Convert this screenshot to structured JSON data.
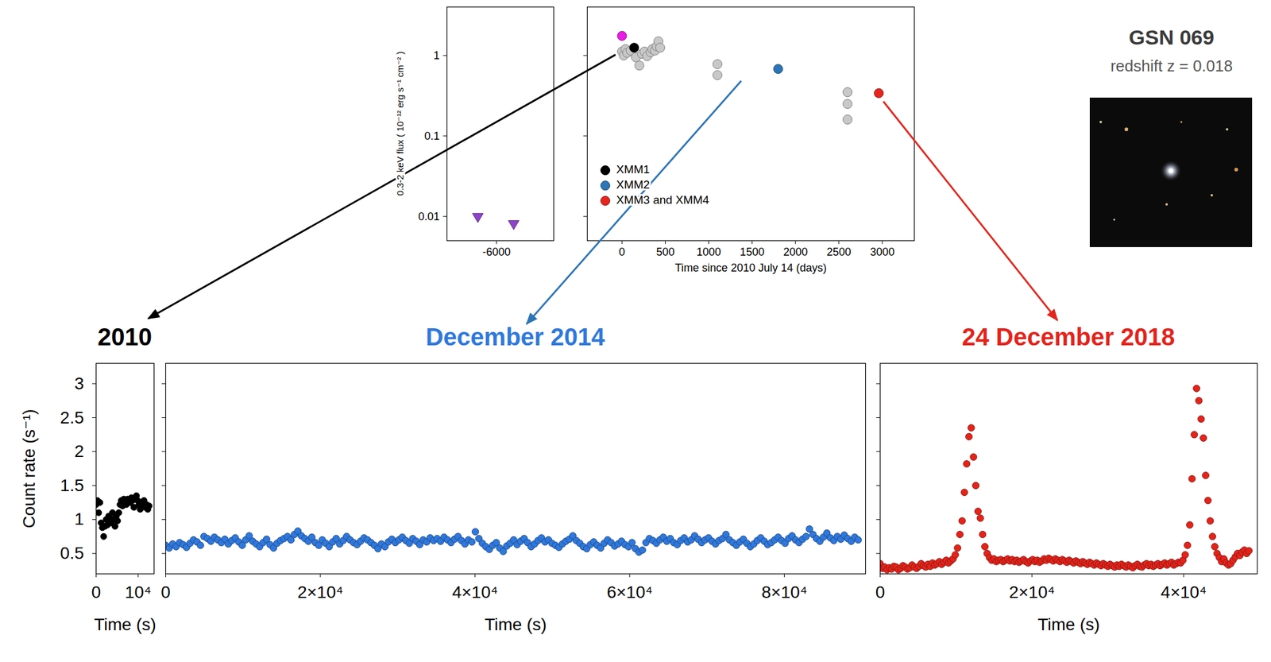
{
  "header": {
    "title": "GSN 069",
    "subtitle": "redshift z = 0.018"
  },
  "chart_data": [
    {
      "type": "scatter",
      "ylabel": "0.3-2 keV flux ( 10⁻¹² erg s⁻¹ cm⁻² )",
      "log": "y",
      "xlim": [
        -7300,
        -4500
      ],
      "xticks": [
        -6000
      ],
      "ylim": [
        0.005,
        4
      ],
      "yticks": [
        0.01,
        0.1,
        1
      ],
      "series": [
        {
          "color": "#8e44c8",
          "marker": "triangle-down",
          "x": [
            -6490,
            -5550
          ],
          "values": [
            0.0098,
            0.008
          ]
        }
      ]
    },
    {
      "type": "scatter",
      "xlabel": "Time since 2010 July 14 (days)",
      "log": "y",
      "xlim": [
        -400,
        3370
      ],
      "xticks": [
        0,
        500,
        1000,
        1500,
        2000,
        2500,
        3000
      ],
      "ylim": [
        0.005,
        4
      ],
      "yticks": [
        0.01,
        0.1,
        1
      ],
      "tick_labels": "x",
      "legend": "lower left",
      "series": [
        {
          "color": "#c8c8c8",
          "marker": "circle",
          "x": [
            0,
            20,
            40,
            60,
            100,
            160,
            200,
            230,
            260,
            290,
            330,
            350,
            380,
            400,
            420,
            440,
            1100,
            1100,
            2600,
            2600,
            2600
          ],
          "values": [
            1.12,
            1,
            1.2,
            1.08,
            1.15,
            0.95,
            0.75,
            1.05,
            1.12,
            0.98,
            1.1,
            1.2,
            1.15,
            1.3,
            1.5,
            1.25,
            0.78,
            0.57,
            0.35,
            0.25,
            0.16
          ]
        },
        {
          "color": "#e81ee0",
          "marker": "circle",
          "x": [
            0
          ],
          "values": [
            1.75
          ]
        },
        {
          "name": "XMM1",
          "color": "#000000",
          "marker": "circle",
          "x": [
            140
          ],
          "values": [
            1.25
          ]
        },
        {
          "name": "XMM2",
          "color": "#2e75b6",
          "marker": "circle",
          "x": [
            1800
          ],
          "values": [
            0.68
          ]
        },
        {
          "name": "XMM3 and XMM4",
          "color": "#e3261e",
          "marker": "circle",
          "x": [
            2960
          ],
          "values": [
            0.34
          ]
        }
      ]
    },
    {
      "type": "scatter",
      "title": "2010",
      "xlabel": "Time (s)",
      "ylabel": "Count rate (s⁻¹)",
      "xlim": [
        0,
        13800
      ],
      "xticks": [
        0,
        {
          "value": 10000,
          "label": "10⁴"
        }
      ],
      "ylim": [
        0.2,
        3.3
      ],
      "yticks": [
        0.5,
        1,
        1.5,
        2,
        2.5,
        3
      ],
      "series": [
        {
          "color": "#000000",
          "marker": "circle",
          "x": [
            0,
            300,
            600,
            900,
            1200,
            1500,
            1800,
            2100,
            2400,
            2700,
            3000,
            3300,
            3600,
            3900,
            4200,
            4500,
            4800,
            5100,
            5400,
            5700,
            6000,
            6300,
            6600,
            6900,
            7200,
            7500,
            7800,
            8100,
            8400,
            8700,
            9000,
            9300,
            9600,
            9900,
            10200,
            10500,
            10800,
            11100,
            11400,
            11700,
            12000,
            12300,
            12600
          ],
          "values": [
            1.22,
            1.28,
            1.1,
            1.25,
            0.95,
            0.88,
            0.75,
            0.9,
            1,
            0.92,
            1.05,
            1.02,
            0.95,
            1.1,
            1,
            0.9,
            1.05,
            0.98,
            1.1,
            1.22,
            1.28,
            1.2,
            1.3,
            1.25,
            1.22,
            1.3,
            1.28,
            1.25,
            1.32,
            1.28,
            1.18,
            1.3,
            1.35,
            1.28,
            1.22,
            1.15,
            1.25,
            1.2,
            1.28,
            1.18,
            1.22,
            1.15,
            1.2
          ]
        }
      ]
    },
    {
      "type": "scatter",
      "title": "December 2014",
      "xlabel": "Time (s)",
      "xlim": [
        0,
        90500
      ],
      "xticks": [
        0,
        {
          "value": 20000,
          "label": "2×10⁴"
        },
        {
          "value": 40000,
          "label": "4×10⁴"
        },
        {
          "value": 60000,
          "label": "6×10⁴"
        },
        {
          "value": 80000,
          "label": "8×10⁴"
        }
      ],
      "ylim": [
        0.2,
        3.3
      ],
      "yticks": [
        0.5,
        1,
        1.5,
        2,
        2.5,
        3
      ],
      "tick_labels": "x",
      "series": [
        {
          "color": "#2f78dc",
          "marker": "circle",
          "x": [
            0,
            450,
            900,
            1350,
            1800,
            2250,
            2700,
            3150,
            3600,
            4050,
            4500,
            4950,
            5400,
            5850,
            6300,
            6750,
            7200,
            7650,
            8100,
            8550,
            9000,
            9450,
            9900,
            10350,
            10800,
            11250,
            11700,
            12150,
            12600,
            13050,
            13500,
            13950,
            14400,
            14850,
            15300,
            15750,
            16200,
            16650,
            17100,
            17550,
            18000,
            18450,
            18900,
            19350,
            19800,
            20250,
            20700,
            21150,
            21600,
            22050,
            22500,
            22950,
            23400,
            23850,
            24300,
            24750,
            25200,
            25650,
            26100,
            26550,
            27000,
            27450,
            27900,
            28350,
            28800,
            29250,
            29700,
            30150,
            30600,
            31050,
            31500,
            31950,
            32400,
            32850,
            33300,
            33750,
            34200,
            34650,
            35100,
            35550,
            36000,
            36450,
            36900,
            37350,
            37800,
            38250,
            38700,
            39150,
            39600,
            40050,
            40500,
            40950,
            41400,
            41850,
            42300,
            42750,
            43200,
            43650,
            44100,
            44550,
            45000,
            45450,
            45900,
            46350,
            46800,
            47250,
            47700,
            48150,
            48600,
            49050,
            49500,
            49950,
            50400,
            50850,
            51300,
            51750,
            52200,
            52650,
            53100,
            53550,
            54000,
            54450,
            54900,
            55350,
            55800,
            56250,
            56700,
            57150,
            57600,
            58050,
            58500,
            58950,
            59400,
            59850,
            60300,
            60750,
            61200,
            61650,
            62100,
            62550,
            63000,
            63450,
            63900,
            64350,
            64800,
            65250,
            65700,
            66150,
            66600,
            67050,
            67500,
            67950,
            68400,
            68850,
            69300,
            69750,
            70200,
            70650,
            71100,
            71550,
            72000,
            72450,
            72900,
            73350,
            73800,
            74250,
            74700,
            75150,
            75600,
            76050,
            76500,
            76950,
            77400,
            77850,
            78300,
            78750,
            79200,
            79650,
            80100,
            80550,
            81000,
            81450,
            81900,
            82350,
            82800,
            83250,
            83700,
            84150,
            84600,
            85050,
            85500,
            85950,
            86400,
            86850,
            87300,
            87750,
            88200,
            88650,
            89100,
            89550
          ],
          "values": [
            0.62,
            0.58,
            0.64,
            0.6,
            0.66,
            0.63,
            0.59,
            0.65,
            0.7,
            0.67,
            0.62,
            0.75,
            0.72,
            0.68,
            0.74,
            0.7,
            0.66,
            0.71,
            0.64,
            0.69,
            0.73,
            0.67,
            0.62,
            0.7,
            0.76,
            0.68,
            0.64,
            0.6,
            0.66,
            0.71,
            0.63,
            0.58,
            0.65,
            0.69,
            0.72,
            0.75,
            0.7,
            0.78,
            0.83,
            0.76,
            0.72,
            0.68,
            0.74,
            0.66,
            0.62,
            0.7,
            0.65,
            0.6,
            0.67,
            0.72,
            0.64,
            0.69,
            0.75,
            0.7,
            0.66,
            0.63,
            0.68,
            0.73,
            0.7,
            0.66,
            0.62,
            0.57,
            0.64,
            0.6,
            0.67,
            0.71,
            0.66,
            0.7,
            0.74,
            0.69,
            0.65,
            0.72,
            0.68,
            0.63,
            0.7,
            0.67,
            0.73,
            0.69,
            0.72,
            0.68,
            0.74,
            0.7,
            0.66,
            0.71,
            0.75,
            0.69,
            0.64,
            0.7,
            0.67,
            0.82,
            0.72,
            0.65,
            0.6,
            0.56,
            0.62,
            0.66,
            0.58,
            0.53,
            0.61,
            0.65,
            0.7,
            0.63,
            0.68,
            0.72,
            0.66,
            0.6,
            0.64,
            0.69,
            0.73,
            0.67,
            0.7,
            0.65,
            0.62,
            0.59,
            0.64,
            0.68,
            0.71,
            0.76,
            0.69,
            0.65,
            0.6,
            0.57,
            0.63,
            0.67,
            0.62,
            0.58,
            0.65,
            0.7,
            0.66,
            0.61,
            0.64,
            0.68,
            0.63,
            0.6,
            0.66,
            0.57,
            0.52,
            0.55,
            0.66,
            0.72,
            0.69,
            0.65,
            0.7,
            0.74,
            0.68,
            0.72,
            0.66,
            0.63,
            0.69,
            0.73,
            0.67,
            0.7,
            0.76,
            0.71,
            0.66,
            0.7,
            0.73,
            0.68,
            0.64,
            0.69,
            0.72,
            0.78,
            0.7,
            0.66,
            0.62,
            0.67,
            0.71,
            0.65,
            0.6,
            0.64,
            0.69,
            0.73,
            0.68,
            0.63,
            0.66,
            0.7,
            0.74,
            0.69,
            0.65,
            0.72,
            0.76,
            0.7,
            0.66,
            0.71,
            0.75,
            0.86,
            0.78,
            0.72,
            0.68,
            0.74,
            0.8,
            0.73,
            0.69,
            0.75,
            0.71,
            0.77,
            0.72,
            0.68,
            0.74,
            0.7
          ]
        }
      ]
    },
    {
      "type": "scatter",
      "title": "24 December 2018",
      "xlabel": "Time (s)",
      "xlim": [
        0,
        49700
      ],
      "xticks": [
        0,
        {
          "value": 20000,
          "label": "2×10⁴"
        },
        {
          "value": 40000,
          "label": "4×10⁴"
        }
      ],
      "ylim": [
        0.2,
        3.3
      ],
      "yticks": [
        0.5,
        1,
        1.5,
        2,
        2.5,
        3
      ],
      "tick_labels": "x",
      "series": [
        {
          "color": "#e3241b",
          "marker": "circle",
          "x": [
            0,
            300,
            600,
            900,
            1200,
            1500,
            1800,
            2100,
            2400,
            2700,
            3000,
            3300,
            3600,
            3900,
            4200,
            4500,
            4800,
            5100,
            5400,
            5700,
            6000,
            6300,
            6600,
            6900,
            7200,
            7500,
            7800,
            8100,
            8400,
            8700,
            9000,
            9300,
            9600,
            9900,
            10200,
            10500,
            10800,
            11100,
            11400,
            11700,
            12000,
            12300,
            12600,
            12900,
            13200,
            13500,
            13800,
            14100,
            14400,
            14700,
            15000,
            15300,
            15600,
            15900,
            16200,
            16500,
            16800,
            17100,
            17400,
            17700,
            18000,
            18300,
            18600,
            18900,
            19200,
            19500,
            19800,
            20100,
            20400,
            20700,
            21000,
            21300,
            21600,
            21900,
            22200,
            22500,
            22800,
            23100,
            23400,
            23700,
            24000,
            24300,
            24600,
            24900,
            25200,
            25500,
            25800,
            26100,
            26400,
            26700,
            27000,
            27300,
            27600,
            27900,
            28200,
            28500,
            28800,
            29100,
            29400,
            29700,
            30000,
            30300,
            30600,
            30900,
            31200,
            31500,
            31800,
            32100,
            32400,
            32700,
            33000,
            33300,
            33600,
            33900,
            34200,
            34500,
            34800,
            35100,
            35400,
            35700,
            36000,
            36300,
            36600,
            36900,
            37200,
            37500,
            37800,
            38100,
            38400,
            38700,
            39000,
            39300,
            39600,
            39900,
            40200,
            40500,
            40800,
            41100,
            41400,
            41700,
            42000,
            42300,
            42600,
            42900,
            43200,
            43500,
            43800,
            44100,
            44400,
            44700,
            45000,
            45300,
            45600,
            45900,
            46200,
            46500,
            46800,
            47100,
            47400,
            47700,
            48000,
            48300,
            48600
          ],
          "values": [
            0.35,
            0.28,
            0.3,
            0.26,
            0.29,
            0.27,
            0.31,
            0.3,
            0.26,
            0.28,
            0.32,
            0.3,
            0.27,
            0.29,
            0.33,
            0.3,
            0.28,
            0.31,
            0.35,
            0.32,
            0.3,
            0.34,
            0.31,
            0.36,
            0.33,
            0.35,
            0.38,
            0.34,
            0.37,
            0.4,
            0.36,
            0.39,
            0.42,
            0.48,
            0.58,
            0.78,
            0.98,
            1.4,
            1.82,
            2.22,
            2.35,
            1.92,
            1.5,
            1.12,
            1.02,
            0.78,
            0.6,
            0.5,
            0.44,
            0.4,
            0.42,
            0.38,
            0.4,
            0.41,
            0.38,
            0.4,
            0.42,
            0.39,
            0.41,
            0.38,
            0.4,
            0.37,
            0.39,
            0.41,
            0.38,
            0.36,
            0.39,
            0.41,
            0.38,
            0.4,
            0.37,
            0.39,
            0.42,
            0.4,
            0.43,
            0.41,
            0.39,
            0.42,
            0.4,
            0.38,
            0.41,
            0.39,
            0.37,
            0.4,
            0.38,
            0.36,
            0.39,
            0.37,
            0.35,
            0.38,
            0.36,
            0.34,
            0.37,
            0.35,
            0.33,
            0.36,
            0.34,
            0.32,
            0.35,
            0.33,
            0.31,
            0.34,
            0.32,
            0.3,
            0.33,
            0.31,
            0.34,
            0.32,
            0.3,
            0.33,
            0.31,
            0.29,
            0.32,
            0.34,
            0.31,
            0.3,
            0.33,
            0.35,
            0.32,
            0.34,
            0.31,
            0.33,
            0.35,
            0.32,
            0.34,
            0.36,
            0.33,
            0.35,
            0.37,
            0.33,
            0.35,
            0.37,
            0.36,
            0.4,
            0.48,
            0.62,
            0.92,
            1.6,
            2.25,
            2.93,
            2.75,
            2.48,
            2.2,
            1.65,
            1.28,
            0.98,
            0.75,
            0.6,
            0.5,
            0.44,
            0.38,
            0.42,
            0.36,
            0.33,
            0.35,
            0.4,
            0.45,
            0.5,
            0.47,
            0.52,
            0.55,
            0.5,
            0.54
          ]
        }
      ]
    }
  ]
}
